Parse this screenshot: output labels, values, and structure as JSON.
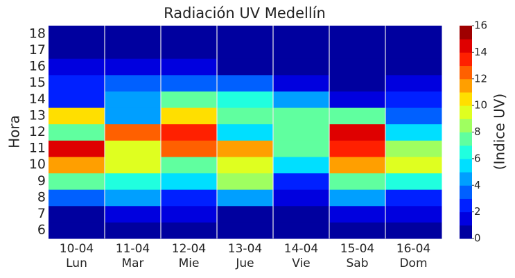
{
  "chart_data": {
    "type": "heatmap",
    "title": "Radiación UV Medellín",
    "ylabel": "Hora",
    "colorbar_label": "(Indice UV)",
    "colormap": "jet",
    "categories": [
      "10-04",
      "11-04",
      "12-04",
      "13-04",
      "14-04",
      "15-04",
      "16-04"
    ],
    "days": [
      "Lun",
      "Mar",
      "Mie",
      "Jue",
      "Vie",
      "Sab",
      "Dom"
    ],
    "y_categories": [
      6,
      7,
      8,
      9,
      10,
      11,
      12,
      13,
      14,
      15,
      16,
      17,
      18
    ],
    "values": [
      [
        0,
        0.5,
        0.5,
        0.5,
        0.5,
        0.5,
        0.5
      ],
      [
        0.5,
        1.5,
        1.5,
        0.5,
        0.5,
        1.5,
        1.5
      ],
      [
        3.5,
        4.5,
        2.5,
        4.5,
        1.5,
        4.5,
        2.5
      ],
      [
        7.5,
        6.5,
        5.5,
        8.5,
        2.5,
        7.5,
        6.5
      ],
      [
        11.5,
        9.5,
        7.5,
        9.5,
        5.5,
        11.5,
        9.5
      ],
      [
        14.5,
        9.5,
        12.5,
        11.5,
        7.5,
        13.5,
        8.5
      ],
      [
        7.5,
        12.5,
        13.5,
        5.5,
        7.5,
        14.5,
        5.5
      ],
      [
        10.5,
        4.5,
        10.5,
        7.5,
        7.5,
        7.5,
        3.5
      ],
      [
        2.5,
        4.5,
        7.5,
        6.5,
        4.5,
        1.5,
        2.5
      ],
      [
        2.5,
        3.5,
        3.5,
        3.5,
        1.5,
        0.5,
        1.5
      ],
      [
        1.5,
        1.5,
        1.5,
        0.5,
        0.5,
        0.5,
        0.5
      ],
      [
        0,
        0,
        0,
        0,
        0,
        0,
        0
      ],
      [
        0,
        0,
        0,
        0,
        0,
        0,
        0
      ]
    ],
    "clim": [
      0,
      16
    ],
    "levels": 16,
    "cticks": [
      0,
      2,
      4,
      6,
      8,
      10,
      12,
      14,
      16
    ],
    "grid": true
  }
}
